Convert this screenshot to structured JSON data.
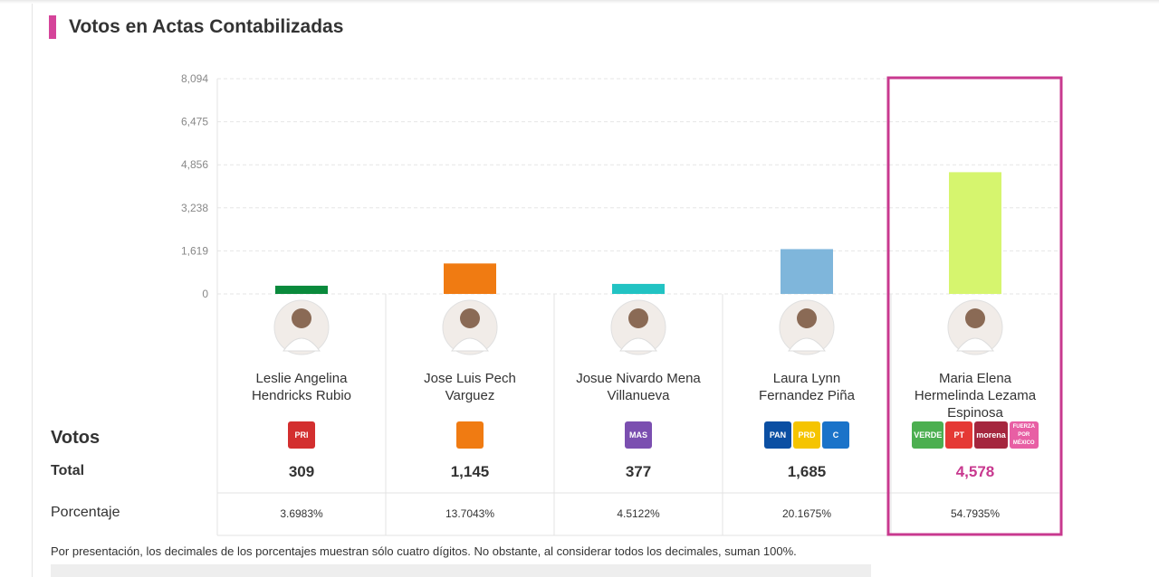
{
  "title": "Votos en Actas Contabilizadas",
  "chart_data": {
    "type": "bar",
    "categories": [
      "Leslie Angelina Hendricks Rubio",
      "Jose Luis Pech Varguez",
      "Josue Nivardo Mena Villanueva",
      "Laura Lynn Fernandez Piña",
      "Maria Elena Hermelinda Lezama Espinosa"
    ],
    "values": [
      309,
      1145,
      377,
      1685,
      4578
    ],
    "value_labels": [
      "309",
      "1,145",
      "377",
      "1,685",
      "4,578"
    ],
    "colors": [
      "#0a8a3c",
      "#f07b12",
      "#22c3c3",
      "#7fb6db",
      "#d6f56e"
    ],
    "ylim": [
      0,
      8094
    ],
    "yticks": [
      0,
      {
        "value": 1619,
        "label": "1,619"
      },
      {
        "value": 3238,
        "label": "3,238"
      },
      {
        "value": 4856,
        "label": "4,856"
      },
      {
        "value": 6475,
        "label": "6,475"
      },
      {
        "value": 8094,
        "label": "8,094"
      }
    ],
    "grid": true,
    "highlight_index": 4
  },
  "logos": [
    [
      {
        "text": "PRI",
        "color": "#d32f2f"
      }
    ],
    [
      {
        "color": "#f07b12"
      }
    ],
    [
      {
        "text": "MAS",
        "color": "#7b4fb0"
      }
    ],
    [
      {
        "text": "PAN",
        "color": "#0b4fa3"
      },
      {
        "text": "PRD",
        "color": "#f5c400"
      },
      {
        "text": "C",
        "color": "#1a73c9"
      }
    ],
    [
      {
        "text": "VERDE",
        "color": "#4caf50"
      },
      {
        "text": "PT",
        "color": "#e53935"
      },
      {
        "text": "morena",
        "color": "#a5263e"
      },
      {
        "text": "FUERZA POR MÉXICO",
        "color": "#e85fa4"
      }
    ]
  ],
  "table": {
    "heading": "Votos",
    "total_label": "Total",
    "percent_label": "Porcentaje",
    "percentages": [
      "3.6983%",
      "13.7043%",
      "4.5122%",
      "20.1675%",
      "54.7935%"
    ]
  },
  "footnote": "Por presentación, los decimales de los porcentajes muestran sólo cuatro dígitos. No obstante, al considerar todos los decimales, suman 100%."
}
